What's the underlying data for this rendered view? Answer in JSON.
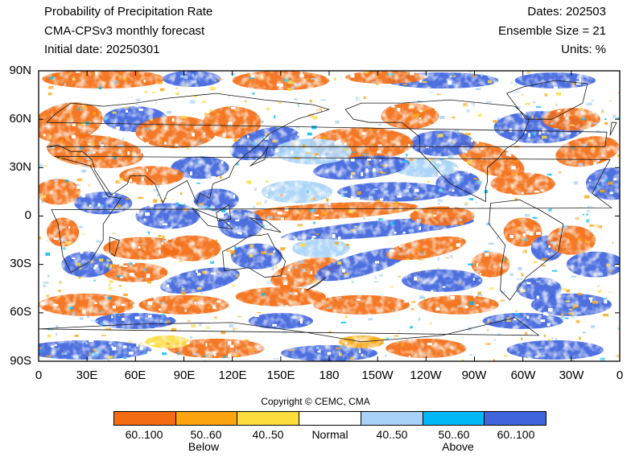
{
  "header": {
    "title": "Probability of Precipitation Rate",
    "model": "CMA-CPSv3 monthly forecast",
    "initial": "Initial date: 20250301",
    "dates": "Dates: 202503",
    "ensemble": "Ensemble Size = 21",
    "units": "Units: %"
  },
  "axes": {
    "lat_ticks": [
      "90N",
      "60N",
      "30N",
      "0",
      "30S",
      "60S",
      "90S"
    ],
    "lon_ticks": [
      "0",
      "30E",
      "60E",
      "90E",
      "120E",
      "150E",
      "180",
      "150W",
      "120W",
      "90W",
      "60W",
      "30W",
      "0"
    ]
  },
  "copyright": "Copyright © CEMC, CMA",
  "legend": {
    "labels": [
      "60..100",
      "50..60",
      "40..50",
      "Normal",
      "40..50",
      "50..60",
      "60..100"
    ],
    "colors": [
      "#f36c12",
      "#fba40e",
      "#fddc3d",
      "#ffffff",
      "#a8d2f8",
      "#00b8f6",
      "#3f64dc"
    ],
    "below": "Below",
    "above": "Above"
  },
  "map_colors": {
    "ocean_bg": "#ffffff",
    "coast": "#1a1a1a",
    "frame": "#000000"
  }
}
